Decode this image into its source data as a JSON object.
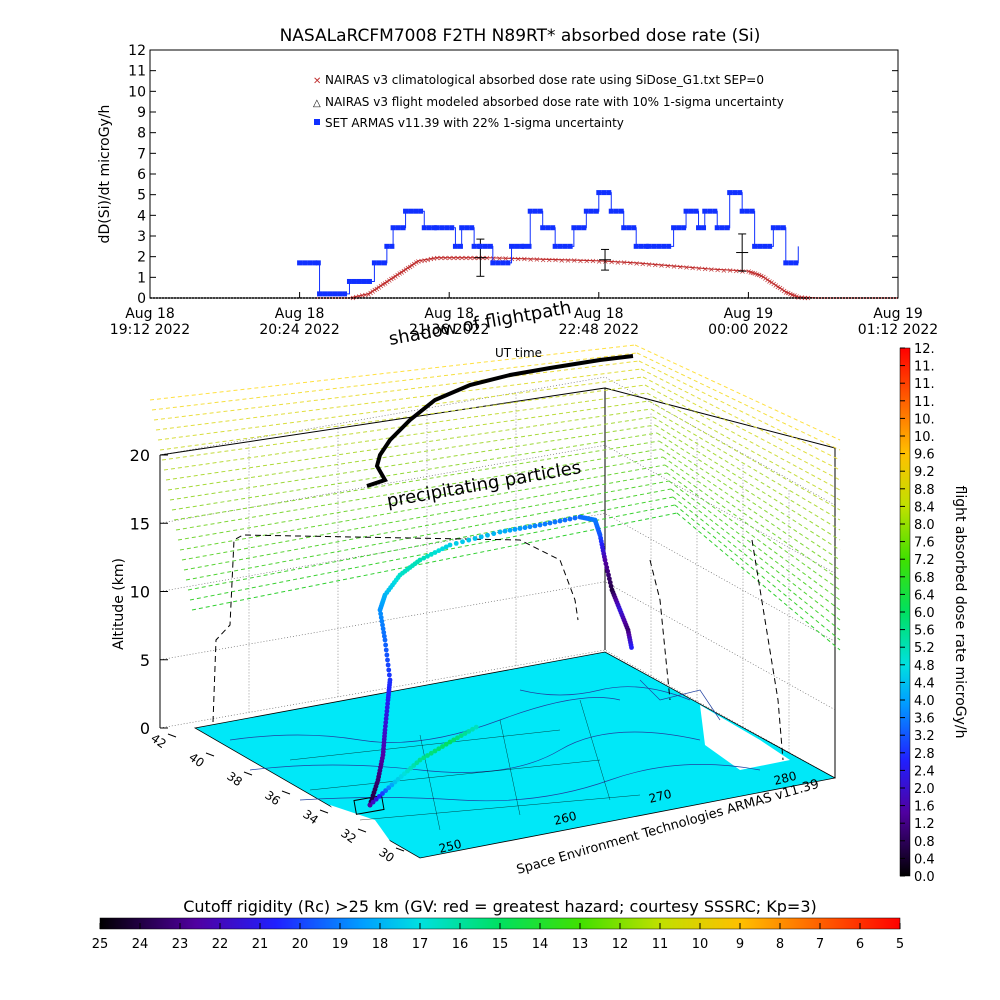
{
  "colors": {
    "nairas_clim": "#c03030",
    "nairas_flight": "#000000",
    "armas": "#1030ff",
    "flightpath": "#000000",
    "map_water": "#00f0ff",
    "shadow_lines_top": "#ffe040",
    "shadow_lines_bottom": "#30d030"
  },
  "chart_data": [
    {
      "type": "line",
      "title": "NASALaRCFM7008  F2TH N89RT* absorbed dose rate (Si)",
      "ylabel": "dD(Si)/dt microGy/h",
      "ylim": [
        0,
        12
      ],
      "yticks": [
        "0",
        "1",
        "2",
        "3",
        "4",
        "5",
        "6",
        "7",
        "8",
        "9",
        "10",
        "11",
        "12"
      ],
      "xticks": [
        {
          "top": "Aug 18",
          "bottom": "19:12 2022"
        },
        {
          "top": "Aug 18",
          "bottom": "20:24 2022"
        },
        {
          "top": "Aug 18",
          "bottom": "21:36 2022"
        },
        {
          "top": "Aug 18",
          "bottom": "22:48 2022"
        },
        {
          "top": "Aug 19",
          "bottom": "00:00 2022"
        },
        {
          "top": "Aug 19",
          "bottom": "01:12 2022"
        }
      ],
      "x_unit": "hours since Aug 18 19:12 UT",
      "xlim": [
        0,
        6
      ],
      "series": [
        {
          "name": "NAIRAS v3 climatological absorbed dose rate using SiDose_G1.txt SEP=0",
          "marker": "x",
          "x": [
            1.33,
            1.6,
            1.75,
            1.85,
            1.95,
            2.05,
            2.15,
            2.3,
            2.5,
            2.7,
            3.0,
            3.3,
            3.6,
            3.9,
            4.2,
            4.5,
            4.8,
            4.9,
            5.0,
            5.1,
            5.2,
            5.35,
            6.0
          ],
          "values": [
            0.0,
            0.0,
            0.2,
            0.6,
            1.0,
            1.4,
            1.8,
            1.95,
            1.95,
            1.95,
            1.9,
            1.85,
            1.8,
            1.7,
            1.55,
            1.4,
            1.3,
            1.1,
            0.7,
            0.3,
            0.05,
            0.0,
            0.0
          ]
        },
        {
          "name": "NAIRAS v3 flight modeled absorbed dose rate with 10% 1-sigma uncertainty",
          "marker": "triangle",
          "x": [
            0.0,
            6.0
          ],
          "values": [
            0.0,
            0.0
          ],
          "error_bars": [
            {
              "x": 2.65,
              "value": 1.95,
              "err": 0.9
            },
            {
              "x": 3.65,
              "value": 1.85,
              "err": 0.5
            },
            {
              "x": 4.75,
              "value": 2.2,
              "err": 0.9
            }
          ]
        },
        {
          "name": "SET ARMAS v11.39 with 22% 1-sigma uncertainty",
          "marker": "square",
          "x": [
            1.2,
            1.35,
            1.36,
            1.6,
            1.8,
            1.9,
            1.95,
            2.05,
            2.2,
            2.3,
            2.45,
            2.5,
            2.6,
            2.65,
            2.75,
            2.9,
            3.0,
            3.05,
            3.15,
            3.25,
            3.4,
            3.5,
            3.6,
            3.7,
            3.8,
            3.9,
            4.0,
            4.2,
            4.3,
            4.4,
            4.45,
            4.55,
            4.65,
            4.75,
            4.85,
            5.0,
            5.1,
            5.2
          ],
          "values": [
            1.7,
            1.7,
            0.2,
            0.8,
            1.7,
            2.5,
            3.4,
            4.2,
            3.4,
            3.4,
            2.5,
            3.4,
            2.5,
            2.5,
            1.7,
            2.5,
            2.5,
            4.2,
            3.4,
            2.5,
            3.4,
            4.2,
            5.1,
            4.2,
            3.4,
            2.5,
            2.5,
            3.4,
            4.2,
            3.4,
            4.2,
            3.4,
            5.1,
            4.2,
            2.5,
            3.4,
            1.7,
            2.5
          ]
        }
      ],
      "legend_position": "top-center"
    },
    {
      "type": "scatter",
      "title": "",
      "zlabel": "Altitude (km)",
      "zticks": [
        "0",
        "5",
        "10",
        "15",
        "20"
      ],
      "zlim": [
        0,
        20
      ],
      "lat_ticks": [
        "30",
        "32",
        "34",
        "36",
        "38",
        "40",
        "42"
      ],
      "lon_ticks": [
        "250",
        "260",
        "270",
        "280"
      ],
      "annotations": [
        "shadow of flightpath",
        "UT time",
        "precipitating particles"
      ],
      "footer": "Space Environment Technologies ARMAS v11.39",
      "colorbar": {
        "label": "flight absorbed dose rate microGy/h",
        "ticks": [
          "0.0",
          "0.4",
          "0.8",
          "1.2",
          "1.6",
          "2.0",
          "2.4",
          "2.8",
          "3.2",
          "3.6",
          "4.0",
          "4.4",
          "4.8",
          "5.2",
          "5.6",
          "6.0",
          "6.4",
          "6.8",
          "7.2",
          "7.6",
          "8.0",
          "8.4",
          "8.8",
          "9.2",
          "9.6",
          "10.",
          "10.",
          "11.",
          "11.",
          "11.",
          "12."
        ],
        "range": [
          0,
          12
        ]
      },
      "rigidity_bar": {
        "label": "Cutoff rigidity (Rc) >25 km (GV: red = greatest hazard; courtesy SSSRC; Kp=3)",
        "ticks": [
          "25",
          "24",
          "23",
          "22",
          "21",
          "20",
          "19",
          "18",
          "17",
          "16",
          "15",
          "14",
          "13",
          "12",
          "11",
          "10",
          "9",
          "8",
          "7",
          "6",
          "5"
        ]
      }
    }
  ]
}
